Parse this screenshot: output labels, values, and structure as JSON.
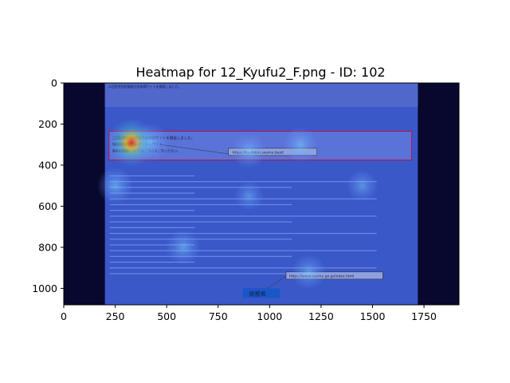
{
  "chart_data": {
    "type": "heatmap",
    "title": "Heatmap for 12_Kyufu2_F.png - ID: 102",
    "xlabel": "",
    "ylabel": "",
    "xlim": [
      0,
      1920
    ],
    "ylim": [
      1080,
      0
    ],
    "x_ticks": [
      0,
      250,
      500,
      750,
      1000,
      1250,
      1500,
      1750
    ],
    "y_ticks": [
      0,
      200,
      400,
      600,
      800,
      1000
    ],
    "grid": false,
    "background_image": {
      "description_free_texts": {
        "header_line": "二回目特別定額給付金申請サイトを開設しました。",
        "banner_line1": "二回目特別定額給付金申請サイトを開設しました。",
        "banner_line2": "特別定額給付金ポータルサイト",
        "banner_line3": "最新の情報については こちらをご覧ください。",
        "url_callout_1": "https://kyufukin.soumu.best/",
        "url_callout_2": "https://www.soumu.go.jp/index.html",
        "logo_text": "総務省"
      },
      "extent_x": [
        200,
        1720
      ],
      "extent_y": [
        1080,
        0
      ]
    },
    "dark_border_color": "#08082e",
    "colormap": "jet",
    "hotspots": [
      {
        "x": 330,
        "y": 290,
        "intensity": 0.85
      },
      {
        "x": 420,
        "y": 290,
        "intensity": 0.55
      },
      {
        "x": 900,
        "y": 330,
        "intensity": 0.45
      },
      {
        "x": 1150,
        "y": 300,
        "intensity": 0.45
      },
      {
        "x": 250,
        "y": 500,
        "intensity": 0.5
      },
      {
        "x": 580,
        "y": 800,
        "intensity": 0.45
      },
      {
        "x": 1190,
        "y": 920,
        "intensity": 0.45
      },
      {
        "x": 1450,
        "y": 500,
        "intensity": 0.35
      },
      {
        "x": 900,
        "y": 550,
        "intensity": 0.3
      }
    ]
  }
}
